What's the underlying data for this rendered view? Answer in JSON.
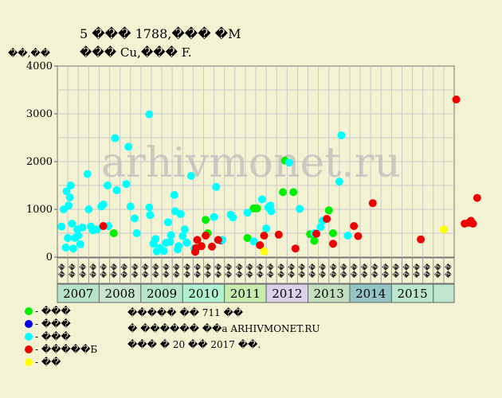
{
  "chart_data": {
    "type": "scatter",
    "title": "5 ��� 1788,��� �M",
    "subtitle": "��� Cu,��� F.",
    "ylabel": "��,��",
    "watermark": "arhivmonet.ru",
    "ylim": [
      0,
      4000
    ],
    "yticks": [
      0,
      1000,
      2000,
      3000,
      4000
    ],
    "years": [
      "2007",
      "2008",
      "2009",
      "2010",
      "2011",
      "2012",
      "2013",
      "2014",
      "2015"
    ],
    "year_colors": [
      "#b7e3c8",
      "#c9e4cf",
      "#b6e7c9",
      "#b0f1d2",
      "#c6ecae",
      "#dcd1eb",
      "#c4dfbf",
      "#95c4c4",
      "#bde6cf"
    ],
    "quarter_labels": [
      "��",
      "��",
      "��",
      "��"
    ],
    "series": [
      {
        "name": "���",
        "color": "#00ee00",
        "points": [
          [
            1.35,
            500
          ],
          [
            3.55,
            780
          ],
          [
            3.6,
            500
          ],
          [
            4.7,
            1020
          ],
          [
            4.78,
            1020
          ],
          [
            4.55,
            400
          ],
          [
            5.45,
            2020
          ],
          [
            5.4,
            1360
          ],
          [
            5.65,
            1360
          ],
          [
            6.05,
            480
          ],
          [
            6.15,
            340
          ],
          [
            6.5,
            980
          ],
          [
            6.6,
            500
          ]
        ]
      },
      {
        "name": "���",
        "color": "#0000ee",
        "points": [
          [
            3.92,
            350
          ]
        ]
      },
      {
        "name": "���",
        "color": "#00ffff",
        "points": [
          [
            0.1,
            640
          ],
          [
            0.15,
            1000
          ],
          [
            0.22,
            1380
          ],
          [
            0.27,
            1080
          ],
          [
            0.32,
            1500
          ],
          [
            0.3,
            1250
          ],
          [
            0.25,
            400
          ],
          [
            0.2,
            200
          ],
          [
            0.35,
            700
          ],
          [
            0.38,
            180
          ],
          [
            0.42,
            400
          ],
          [
            0.48,
            580
          ],
          [
            0.55,
            270
          ],
          [
            0.5,
            450
          ],
          [
            0.6,
            620
          ],
          [
            0.72,
            1740
          ],
          [
            0.75,
            1000
          ],
          [
            0.8,
            640
          ],
          [
            0.85,
            560
          ],
          [
            0.95,
            580
          ],
          [
            1.05,
            1060
          ],
          [
            1.1,
            1100
          ],
          [
            1.2,
            1500
          ],
          [
            1.22,
            650
          ],
          [
            1.38,
            2490
          ],
          [
            1.42,
            1400
          ],
          [
            1.65,
            1530
          ],
          [
            1.7,
            2310
          ],
          [
            1.75,
            1060
          ],
          [
            1.85,
            810
          ],
          [
            1.9,
            500
          ],
          [
            2.2,
            2990
          ],
          [
            2.2,
            1040
          ],
          [
            2.22,
            880
          ],
          [
            2.3,
            280
          ],
          [
            2.35,
            380
          ],
          [
            2.38,
            120
          ],
          [
            2.45,
            190
          ],
          [
            2.55,
            130
          ],
          [
            2.6,
            300
          ],
          [
            2.65,
            730
          ],
          [
            2.7,
            320
          ],
          [
            2.72,
            460
          ],
          [
            2.8,
            1300
          ],
          [
            2.82,
            960
          ],
          [
            2.88,
            160
          ],
          [
            2.9,
            230
          ],
          [
            2.95,
            900
          ],
          [
            3.0,
            440
          ],
          [
            3.05,
            580
          ],
          [
            3.1,
            300
          ],
          [
            3.2,
            1700
          ],
          [
            3.28,
            180
          ],
          [
            3.75,
            840
          ],
          [
            3.8,
            1470
          ],
          [
            3.95,
            360
          ],
          [
            4.15,
            890
          ],
          [
            4.2,
            830
          ],
          [
            4.55,
            930
          ],
          [
            4.7,
            330
          ],
          [
            4.9,
            1210
          ],
          [
            5.05,
            1040
          ],
          [
            5.12,
            960
          ],
          [
            5.1,
            1080
          ],
          [
            5.0,
            600
          ],
          [
            5.55,
            1980
          ],
          [
            5.8,
            1010
          ],
          [
            6.15,
            500
          ],
          [
            6.3,
            630
          ],
          [
            6.35,
            760
          ],
          [
            6.75,
            1580
          ],
          [
            6.8,
            2550
          ],
          [
            6.95,
            450
          ]
        ]
      },
      {
        "name": "�����Б",
        "color": "#ee0000",
        "points": [
          [
            1.1,
            650
          ],
          [
            3.3,
            110
          ],
          [
            3.32,
            190
          ],
          [
            3.35,
            360
          ],
          [
            3.45,
            230
          ],
          [
            3.55,
            450
          ],
          [
            3.7,
            220
          ],
          [
            3.85,
            360
          ],
          [
            4.85,
            250
          ],
          [
            4.95,
            450
          ],
          [
            5.3,
            470
          ],
          [
            5.7,
            180
          ],
          [
            6.2,
            490
          ],
          [
            6.45,
            800
          ],
          [
            6.6,
            280
          ],
          [
            7.1,
            650
          ],
          [
            7.2,
            440
          ],
          [
            7.55,
            1130
          ],
          [
            8.7,
            370
          ],
          [
            9.55,
            3300
          ],
          [
            9.75,
            700
          ],
          [
            9.85,
            720
          ],
          [
            9.9,
            760
          ],
          [
            9.95,
            700
          ],
          [
            10.05,
            1240
          ]
        ]
      },
      {
        "name": "��",
        "color": "#ffff00",
        "points": [
          [
            4.95,
            120
          ],
          [
            9.25,
            580
          ]
        ]
      }
    ]
  },
  "legend": [
    {
      "label": "- ���",
      "color": "#00ee00"
    },
    {
      "label": "- ���",
      "color": "#0000ee"
    },
    {
      "label": "- ���",
      "color": "#00ffff"
    },
    {
      "label": "- �����Б",
      "color": "#ee0000"
    },
    {
      "label": "- ��",
      "color": "#ffff00"
    }
  ],
  "notes": [
    "����� �� 711 ��",
    "� ������ ��а ARHIVMONET.RU",
    "��� � 20 �� 2017 ��."
  ]
}
